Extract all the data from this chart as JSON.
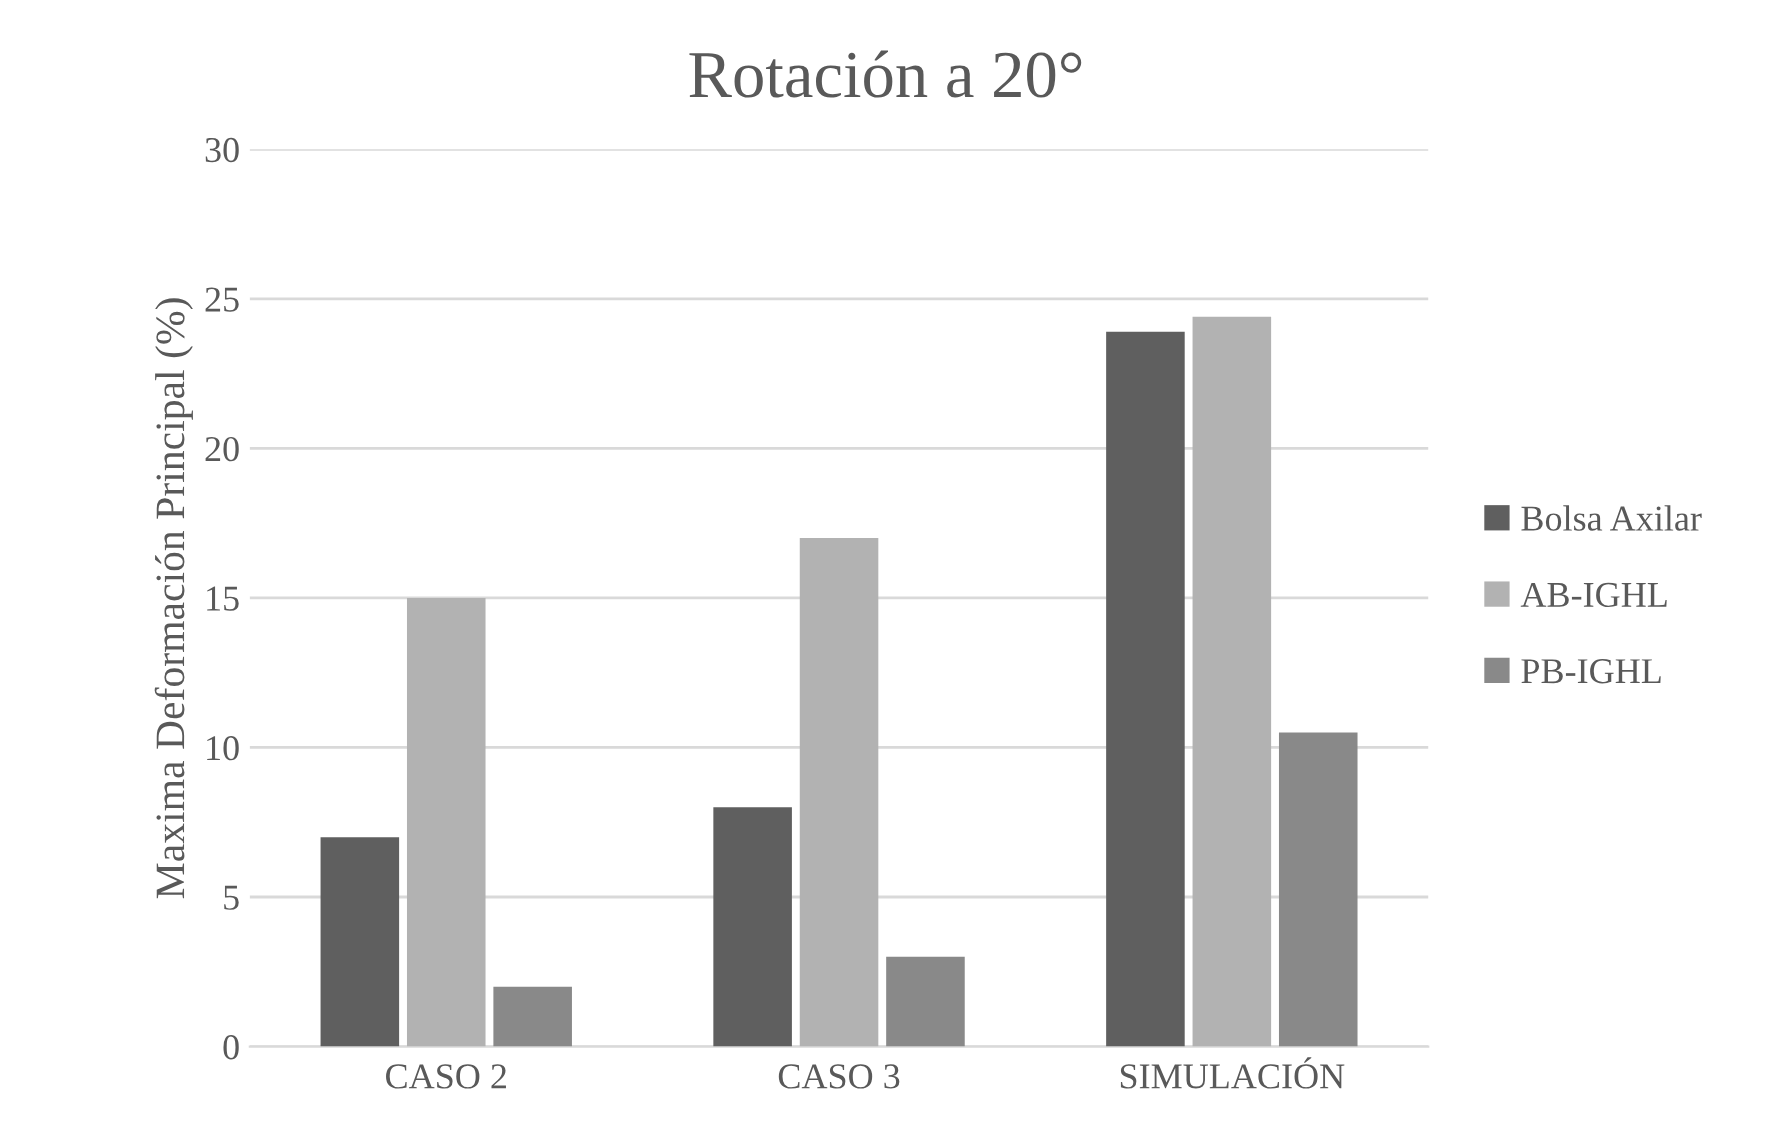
{
  "chart_data": {
    "type": "bar",
    "title": "Rotación a 20°",
    "ylabel": "Maxima Deformación Principal (%)",
    "categories": [
      "CASO 2",
      "CASO 3",
      "SIMULACIÓN"
    ],
    "series": [
      {
        "name": "Bolsa Axilar",
        "color": "#5f5f5f",
        "values": [
          7,
          8,
          23.9
        ]
      },
      {
        "name": "AB-IGHL",
        "color": "#b2b2b2",
        "values": [
          15,
          17,
          24.4
        ]
      },
      {
        "name": "PB-IGHL",
        "color": "#898989",
        "values": [
          2,
          3,
          10.5
        ]
      }
    ],
    "ylim": [
      0,
      30
    ],
    "yticks": [
      0,
      5,
      10,
      15,
      20,
      25,
      30
    ],
    "grid": "y",
    "legend": "right"
  }
}
